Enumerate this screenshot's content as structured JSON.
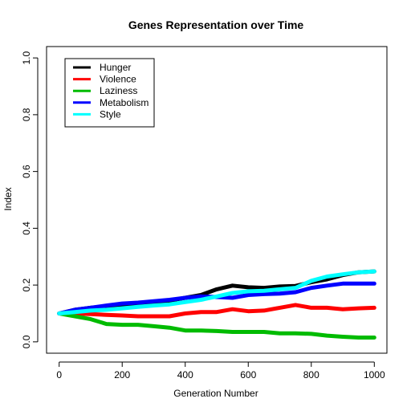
{
  "chart_data": {
    "type": "line",
    "title": "Genes Representation over Time",
    "xlabel": "Generation Number",
    "ylabel": "Index",
    "xlim": [
      0,
      1000
    ],
    "ylim": [
      0,
      1
    ],
    "x_ticks": [
      0,
      200,
      400,
      600,
      800,
      1000
    ],
    "x_tick_labels": [
      "0",
      "200",
      "400",
      "600",
      "800",
      "1000"
    ],
    "y_ticks": [
      0,
      0.2,
      0.4,
      0.6,
      0.8,
      1
    ],
    "y_tick_labels": [
      "0.0",
      "0.2",
      "0.4",
      "0.6",
      "0.8",
      "1.0"
    ],
    "grid": false,
    "legend_position": "top-left",
    "x": [
      0,
      50,
      100,
      150,
      200,
      250,
      300,
      350,
      400,
      450,
      500,
      550,
      600,
      650,
      700,
      750,
      800,
      850,
      900,
      950,
      1000
    ],
    "series": [
      {
        "name": "Hunger",
        "color": "#000000",
        "values": [
          0.1,
          0.113,
          0.12,
          0.125,
          0.13,
          0.135,
          0.14,
          0.145,
          0.155,
          0.165,
          0.185,
          0.198,
          0.192,
          0.19,
          0.195,
          0.197,
          0.21,
          0.22,
          0.235,
          0.245,
          0.248
        ]
      },
      {
        "name": "Violence",
        "color": "#ff0000",
        "values": [
          0.1,
          0.1,
          0.098,
          0.095,
          0.093,
          0.09,
          0.09,
          0.09,
          0.1,
          0.105,
          0.105,
          0.115,
          0.108,
          0.11,
          0.12,
          0.13,
          0.12,
          0.12,
          0.115,
          0.118,
          0.12
        ]
      },
      {
        "name": "Laziness",
        "color": "#00bb00",
        "values": [
          0.1,
          0.09,
          0.08,
          0.063,
          0.06,
          0.06,
          0.055,
          0.05,
          0.04,
          0.04,
          0.038,
          0.035,
          0.035,
          0.035,
          0.03,
          0.03,
          0.028,
          0.022,
          0.018,
          0.015,
          0.015
        ]
      },
      {
        "name": "Metabolism",
        "color": "#0000ff",
        "values": [
          0.1,
          0.113,
          0.12,
          0.128,
          0.135,
          0.138,
          0.143,
          0.148,
          0.155,
          0.16,
          0.158,
          0.155,
          0.165,
          0.168,
          0.17,
          0.175,
          0.19,
          0.198,
          0.205,
          0.205,
          0.205
        ]
      },
      {
        "name": "Style",
        "color": "#00ffff",
        "values": [
          0.1,
          0.105,
          0.11,
          0.113,
          0.118,
          0.123,
          0.128,
          0.132,
          0.14,
          0.148,
          0.16,
          0.172,
          0.178,
          0.18,
          0.185,
          0.19,
          0.215,
          0.23,
          0.238,
          0.245,
          0.248
        ]
      }
    ]
  }
}
